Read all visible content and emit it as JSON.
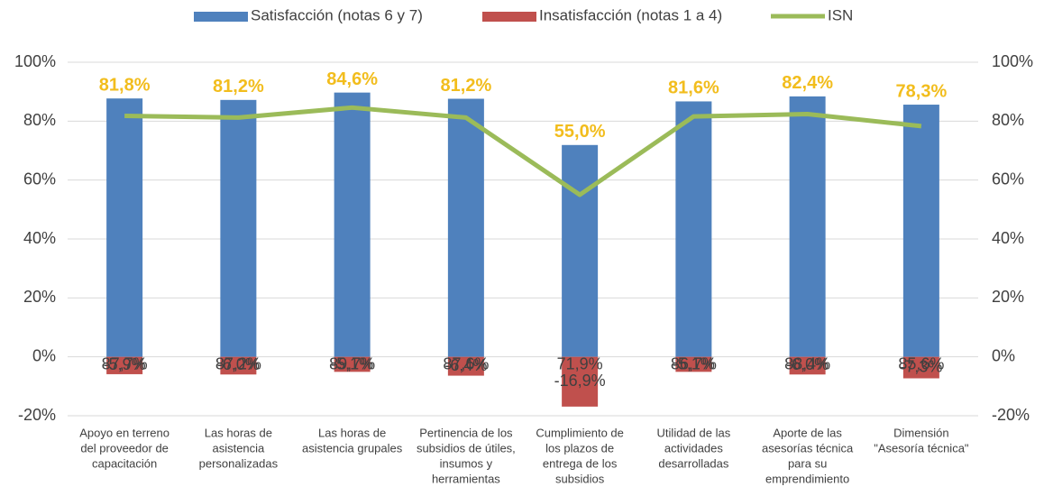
{
  "chart_data": {
    "type": "bar",
    "categories": [
      [
        "Apoyo en terreno",
        "del proveedor de",
        "capacitación"
      ],
      [
        "Las horas de",
        "asistencia",
        "personalizadas"
      ],
      [
        "Las horas de",
        "asistencia grupales"
      ],
      [
        "Pertinencia de los",
        "subsidios de útiles,",
        "insumos y",
        "herramientas"
      ],
      [
        "Cumplimiento de",
        "los plazos de",
        "entrega de los",
        "subsidios"
      ],
      [
        "Utilidad de las",
        "actividades",
        "desarrolladas"
      ],
      [
        "Aporte de las",
        "asesorías técnica",
        "para su",
        "emprendimiento"
      ],
      [
        "Dimensión",
        "\"Asesoría técnica\""
      ]
    ],
    "series": [
      {
        "name": "Satisfacción (notas 6 y 7)",
        "color": "#4f81bd",
        "kind": "bar",
        "values": [
          87.7,
          87.2,
          89.7,
          87.6,
          71.9,
          86.7,
          88.4,
          85.6
        ],
        "value_labels": [
          "87,7%",
          "87,2%",
          "89,7%",
          "87,6%",
          "71,9%",
          "86,7%",
          "88,4%",
          "85,6%"
        ]
      },
      {
        "name": "Insatisfacción (notas 1 a 4)",
        "color": "#c0504d",
        "kind": "bar",
        "values": [
          -5.9,
          -6.0,
          -5.1,
          -6.4,
          -16.9,
          -5.1,
          -6.0,
          -7.3
        ],
        "value_labels": [
          "-5,9%",
          "-6,0%",
          "-5,1%",
          "-6,4%",
          "-16,9%",
          "-5,1%",
          "-6,0%",
          "-7,3%"
        ]
      },
      {
        "name": "ISN",
        "color": "#9bbb59",
        "kind": "line",
        "axis": "y2",
        "values": [
          81.8,
          81.2,
          84.6,
          81.2,
          55.0,
          81.6,
          82.4,
          78.3
        ],
        "value_labels": [
          "81,8%",
          "81,2%",
          "84,6%",
          "81,2%",
          "55,0%",
          "81,6%",
          "82,4%",
          "78,3%"
        ]
      }
    ],
    "ylim": [
      -20,
      100
    ],
    "yticks": [
      {
        "value": -20,
        "label": "-20%"
      },
      {
        "value": 0,
        "label": "0%"
      },
      {
        "value": 20,
        "label": "20%"
      },
      {
        "value": 40,
        "label": "40%"
      },
      {
        "value": 60,
        "label": "60%"
      },
      {
        "value": 80,
        "label": "80%"
      },
      {
        "value": 100,
        "label": "100%"
      }
    ],
    "y2lim": [
      -20,
      100
    ],
    "y2ticks": [
      {
        "value": -20,
        "label": "-20%"
      },
      {
        "value": 0,
        "label": "0%"
      },
      {
        "value": 20,
        "label": "20%"
      },
      {
        "value": 40,
        "label": "40%"
      },
      {
        "value": 60,
        "label": "60%"
      },
      {
        "value": 80,
        "label": "80%"
      },
      {
        "value": 100,
        "label": "100%"
      }
    ],
    "legend": "top"
  }
}
